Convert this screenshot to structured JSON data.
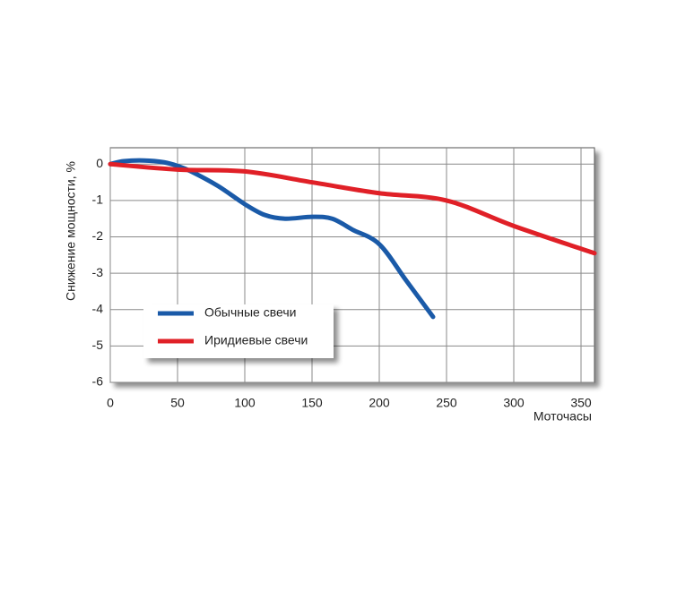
{
  "chart_data": {
    "type": "line",
    "ylabel": "Снижение мощности, %",
    "xlabel": "Моточасы",
    "xlim": [
      0,
      360
    ],
    "xticks": [
      0,
      50,
      100,
      150,
      200,
      250,
      300,
      350
    ],
    "ylim": [
      -6,
      0.45
    ],
    "yticks": [
      0,
      -1,
      -2,
      -3,
      -4,
      -5,
      -6
    ],
    "grid": true,
    "series": [
      {
        "name": "Обычные свечи",
        "color": "#1a5aa8",
        "x": [
          0,
          10,
          25,
          40,
          50,
          60,
          80,
          100,
          115,
          130,
          150,
          165,
          180,
          200,
          220,
          240
        ],
        "values": [
          0,
          0.08,
          0.1,
          0.05,
          -0.05,
          -0.2,
          -0.6,
          -1.1,
          -1.4,
          -1.5,
          -1.45,
          -1.5,
          -1.8,
          -2.2,
          -3.2,
          -4.2
        ]
      },
      {
        "name": "Иридиевые свечи",
        "color": "#e02027",
        "x": [
          0,
          50,
          100,
          150,
          200,
          250,
          300,
          360
        ],
        "values": [
          0,
          -0.15,
          -0.2,
          -0.5,
          -0.8,
          -1.0,
          -1.7,
          -2.45
        ]
      }
    ]
  }
}
